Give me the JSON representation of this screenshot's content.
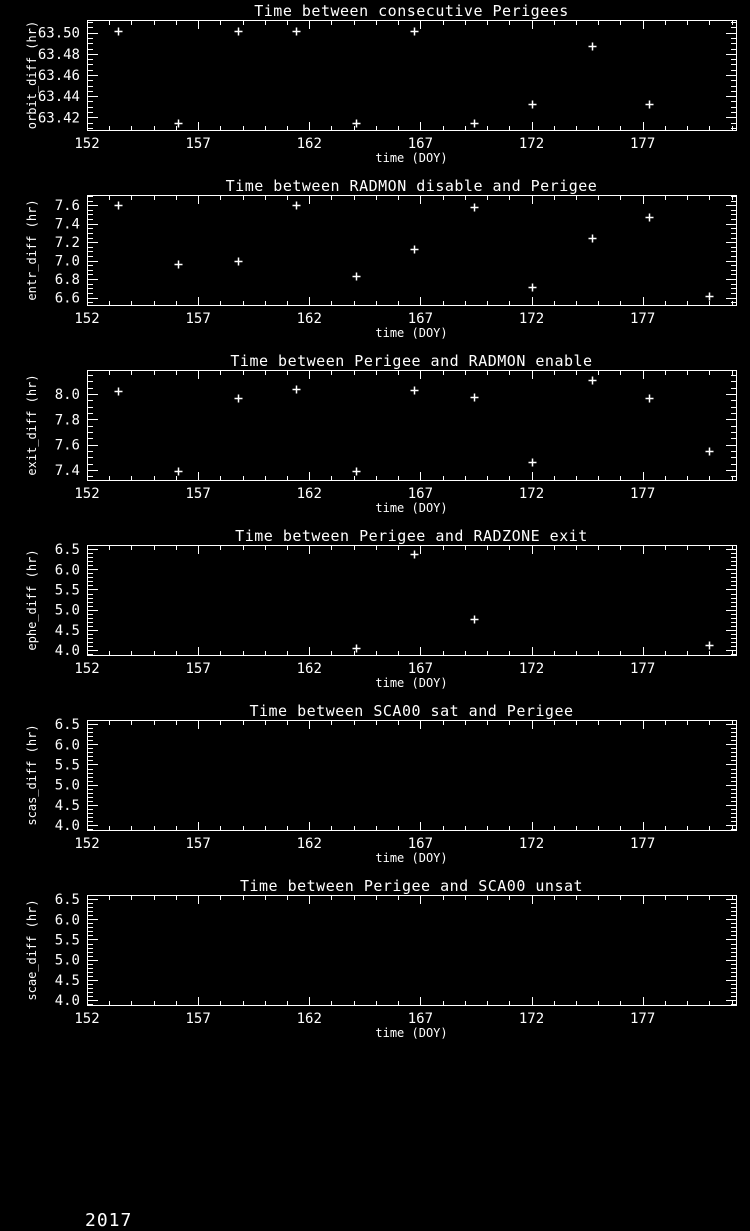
{
  "page": {
    "background": "#000000",
    "foreground": "#ffffff"
  },
  "footer": {
    "year": "2017"
  },
  "chart_data": [
    {
      "type": "scatter",
      "title": "Time between consecutive Perigees",
      "xlabel": "time (DOY)",
      "ylabel": "orbit_diff (hr)",
      "marker": "plus",
      "grid": false,
      "xlim": [
        152,
        181.2
      ],
      "ylim": [
        63.408,
        63.512
      ],
      "x_ticks": [
        152,
        157,
        162,
        167,
        172,
        177
      ],
      "x_tick_labels": [
        "152",
        "157",
        "162",
        "167",
        "172",
        "177"
      ],
      "x_minor_step": 1,
      "y_ticks": [
        63.42,
        63.44,
        63.46,
        63.48,
        63.5
      ],
      "y_tick_labels": [
        "63.42",
        "63.44",
        "63.46",
        "63.48",
        "63.50"
      ],
      "y_minor_step": 0.005,
      "points": [
        [
          153.4,
          63.502
        ],
        [
          156.1,
          63.415
        ],
        [
          158.8,
          63.502
        ],
        [
          161.4,
          63.502
        ],
        [
          164.1,
          63.415
        ],
        [
          166.7,
          63.502
        ],
        [
          169.4,
          63.415
        ],
        [
          172.0,
          63.433
        ],
        [
          174.7,
          63.487
        ],
        [
          177.3,
          63.433
        ]
      ]
    },
    {
      "type": "scatter",
      "title": "Time between RADMON disable and Perigee",
      "xlabel": "time (DOY)",
      "ylabel": "entr_diff (hr)",
      "marker": "plus",
      "grid": false,
      "xlim": [
        152,
        181.2
      ],
      "ylim": [
        6.52,
        7.71
      ],
      "x_ticks": [
        152,
        157,
        162,
        167,
        172,
        177
      ],
      "x_tick_labels": [
        "152",
        "157",
        "162",
        "167",
        "172",
        "177"
      ],
      "x_minor_step": 1,
      "y_ticks": [
        6.6,
        6.8,
        7.0,
        7.2,
        7.4,
        7.6
      ],
      "y_tick_labels": [
        "6.6",
        "6.8",
        "7.0",
        "7.2",
        "7.4",
        "7.6"
      ],
      "y_minor_step": 0.05,
      "points": [
        [
          153.4,
          7.6
        ],
        [
          156.1,
          6.96
        ],
        [
          158.8,
          7.0
        ],
        [
          161.4,
          7.6
        ],
        [
          164.1,
          6.83
        ],
        [
          166.7,
          7.13
        ],
        [
          169.4,
          7.58
        ],
        [
          172.0,
          6.71
        ],
        [
          174.7,
          7.24
        ],
        [
          177.3,
          7.47
        ],
        [
          180.0,
          6.62
        ]
      ]
    },
    {
      "type": "scatter",
      "title": "Time between Perigee and RADMON enable",
      "xlabel": "time (DOY)",
      "ylabel": "exit_diff (hr)",
      "marker": "plus",
      "grid": false,
      "xlim": [
        152,
        181.2
      ],
      "ylim": [
        7.32,
        8.19
      ],
      "x_ticks": [
        152,
        157,
        162,
        167,
        172,
        177
      ],
      "x_tick_labels": [
        "152",
        "157",
        "162",
        "167",
        "172",
        "177"
      ],
      "x_minor_step": 1,
      "y_ticks": [
        7.4,
        7.6,
        7.8,
        8.0
      ],
      "y_tick_labels": [
        "7.4",
        "7.6",
        "7.8",
        "8.0"
      ],
      "y_minor_step": 0.05,
      "points": [
        [
          153.4,
          8.02
        ],
        [
          156.1,
          7.39
        ],
        [
          158.8,
          7.97
        ],
        [
          161.4,
          8.04
        ],
        [
          164.1,
          7.39
        ],
        [
          166.7,
          8.03
        ],
        [
          169.4,
          7.98
        ],
        [
          172.0,
          7.46
        ],
        [
          174.7,
          8.11
        ],
        [
          177.3,
          7.97
        ],
        [
          180.0,
          7.55
        ]
      ]
    },
    {
      "type": "scatter",
      "title": "Time between Perigee and RADZONE exit",
      "xlabel": "time (DOY)",
      "ylabel": "ephe_diff (hr)",
      "marker": "plus",
      "grid": false,
      "xlim": [
        152,
        181.2
      ],
      "ylim": [
        3.88,
        6.6
      ],
      "x_ticks": [
        152,
        157,
        162,
        167,
        172,
        177
      ],
      "x_tick_labels": [
        "152",
        "157",
        "162",
        "167",
        "172",
        "177"
      ],
      "x_minor_step": 1,
      "y_ticks": [
        4.0,
        4.5,
        5.0,
        5.5,
        6.0,
        6.5
      ],
      "y_tick_labels": [
        "4.0",
        "4.5",
        "5.0",
        "5.5",
        "6.0",
        "6.5"
      ],
      "y_minor_step": 0.1,
      "points": [
        [
          164.1,
          4.06
        ],
        [
          166.7,
          6.37
        ],
        [
          169.4,
          4.77
        ],
        [
          180.0,
          4.12
        ]
      ]
    },
    {
      "type": "scatter",
      "title": "Time between SCA00 sat and Perigee",
      "xlabel": "time (DOY)",
      "ylabel": "scas_diff (hr)",
      "marker": "plus",
      "grid": false,
      "xlim": [
        152,
        181.2
      ],
      "ylim": [
        3.88,
        6.6
      ],
      "x_ticks": [
        152,
        157,
        162,
        167,
        172,
        177
      ],
      "x_tick_labels": [
        "152",
        "157",
        "162",
        "167",
        "172",
        "177"
      ],
      "x_minor_step": 1,
      "y_ticks": [
        4.0,
        4.5,
        5.0,
        5.5,
        6.0,
        6.5
      ],
      "y_tick_labels": [
        "4.0",
        "4.5",
        "5.0",
        "5.5",
        "6.0",
        "6.5"
      ],
      "y_minor_step": 0.1,
      "points": []
    },
    {
      "type": "scatter",
      "title": "Time between Perigee and SCA00 unsat",
      "xlabel": "time (DOY)",
      "ylabel": "scae_diff (hr)",
      "marker": "plus",
      "grid": false,
      "xlim": [
        152,
        181.2
      ],
      "ylim": [
        3.88,
        6.6
      ],
      "x_ticks": [
        152,
        157,
        162,
        167,
        172,
        177
      ],
      "x_tick_labels": [
        "152",
        "157",
        "162",
        "167",
        "172",
        "177"
      ],
      "x_minor_step": 1,
      "y_ticks": [
        4.0,
        4.5,
        5.0,
        5.5,
        6.0,
        6.5
      ],
      "y_tick_labels": [
        "4.0",
        "4.5",
        "5.0",
        "5.5",
        "6.0",
        "6.5"
      ],
      "y_minor_step": 0.1,
      "points": []
    }
  ]
}
